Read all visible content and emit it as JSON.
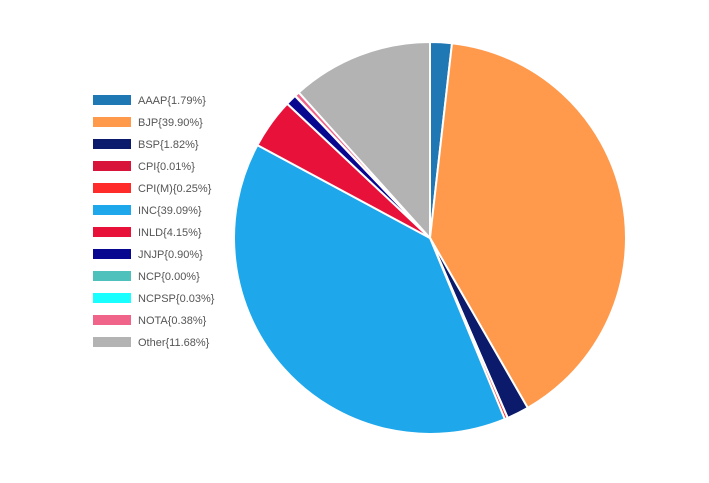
{
  "chart_data": {
    "type": "pie",
    "title": "",
    "legend_position": "left",
    "start_angle_deg": 0,
    "direction": "clockwise",
    "slices": [
      {
        "label": "AAAP{1.79%}",
        "name": "AAAP",
        "value": 1.79,
        "color": "#1f77b4"
      },
      {
        "label": "BJP{39.90%}",
        "name": "BJP",
        "value": 39.9,
        "color": "#ff9a4d"
      },
      {
        "label": "BSP{1.82%}",
        "name": "BSP",
        "value": 1.82,
        "color": "#0b1a6b"
      },
      {
        "label": "CPI{0.01%}",
        "name": "CPI",
        "value": 0.01,
        "color": "#d9143a"
      },
      {
        "label": "CPI(M){0.25%}",
        "name": "CPI(M)",
        "value": 0.25,
        "color": "#ff2a2a"
      },
      {
        "label": "INC{39.09%}",
        "name": "INC",
        "value": 39.09,
        "color": "#1ea7ea"
      },
      {
        "label": "INLD{4.15%}",
        "name": "INLD",
        "value": 4.15,
        "color": "#e8113a"
      },
      {
        "label": "JNJP{0.90%}",
        "name": "JNJP",
        "value": 0.9,
        "color": "#07088f"
      },
      {
        "label": "NCP{0.00%}",
        "name": "NCP",
        "value": 0.0,
        "color": "#4fc1bd"
      },
      {
        "label": "NCPSP{0.03%}",
        "name": "NCPSP",
        "value": 0.03,
        "color": "#19ffff"
      },
      {
        "label": "NOTA{0.38%}",
        "name": "NOTA",
        "value": 0.38,
        "color": "#f0648a"
      },
      {
        "label": "Other{11.68%}",
        "name": "Other",
        "value": 11.68,
        "color": "#b3b3b3"
      }
    ]
  }
}
